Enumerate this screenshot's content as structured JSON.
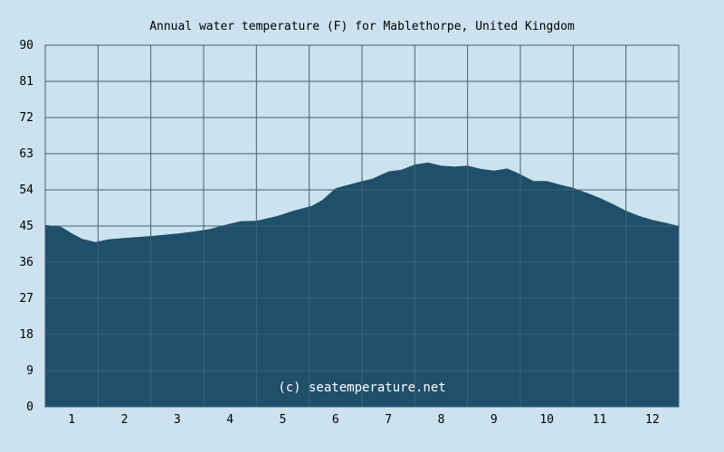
{
  "chart_data": {
    "type": "area",
    "title": "Annual water temperature (F) for Mablethorpe, United Kingdom",
    "credit": "(c) seatemperature.net",
    "xlabel": "",
    "ylabel": "",
    "xlim": [
      0.5,
      12.5
    ],
    "ylim": [
      0,
      90
    ],
    "y_ticks": [
      "0",
      "9",
      "18",
      "27",
      "36",
      "45",
      "54",
      "63",
      "72",
      "81",
      "90"
    ],
    "x_ticks": [
      "1",
      "2",
      "3",
      "4",
      "5",
      "6",
      "7",
      "8",
      "9",
      "10",
      "11",
      "12"
    ],
    "grid": true,
    "colors": {
      "background": "#cce3ef",
      "fill": "#1f4f6b",
      "grid": "#3e6277"
    },
    "series": [
      {
        "x": [
          0.5,
          0.8,
          1.0,
          1.2,
          1.45,
          1.7,
          2.0,
          2.5,
          3.0,
          3.3,
          3.6,
          3.85,
          4.2,
          4.5,
          4.9,
          5.2,
          5.55,
          5.75,
          6.0,
          6.45,
          6.7,
          7.0,
          7.25,
          7.5,
          7.75,
          8.0,
          8.25,
          8.5,
          8.75,
          9.0,
          9.25,
          9.4,
          9.55,
          9.75,
          10.0,
          10.25,
          10.5,
          10.75,
          11.0,
          11.25,
          11.5,
          11.75,
          12.0,
          12.25,
          12.5
        ],
        "y": [
          45.3,
          44.8,
          43.2,
          41.8,
          41.0,
          41.7,
          42.0,
          42.5,
          43.1,
          43.6,
          44.2,
          45.1,
          46.2,
          46.3,
          47.5,
          48.8,
          50.0,
          51.5,
          54.4,
          56.0,
          56.8,
          58.6,
          59.0,
          60.3,
          60.8,
          60.0,
          59.8,
          60.0,
          59.2,
          58.8,
          59.3,
          58.5,
          57.5,
          56.2,
          56.2,
          55.3,
          54.5,
          53.3,
          52.0,
          50.5,
          48.8,
          47.5,
          46.5,
          45.8,
          45.0
        ]
      }
    ]
  }
}
